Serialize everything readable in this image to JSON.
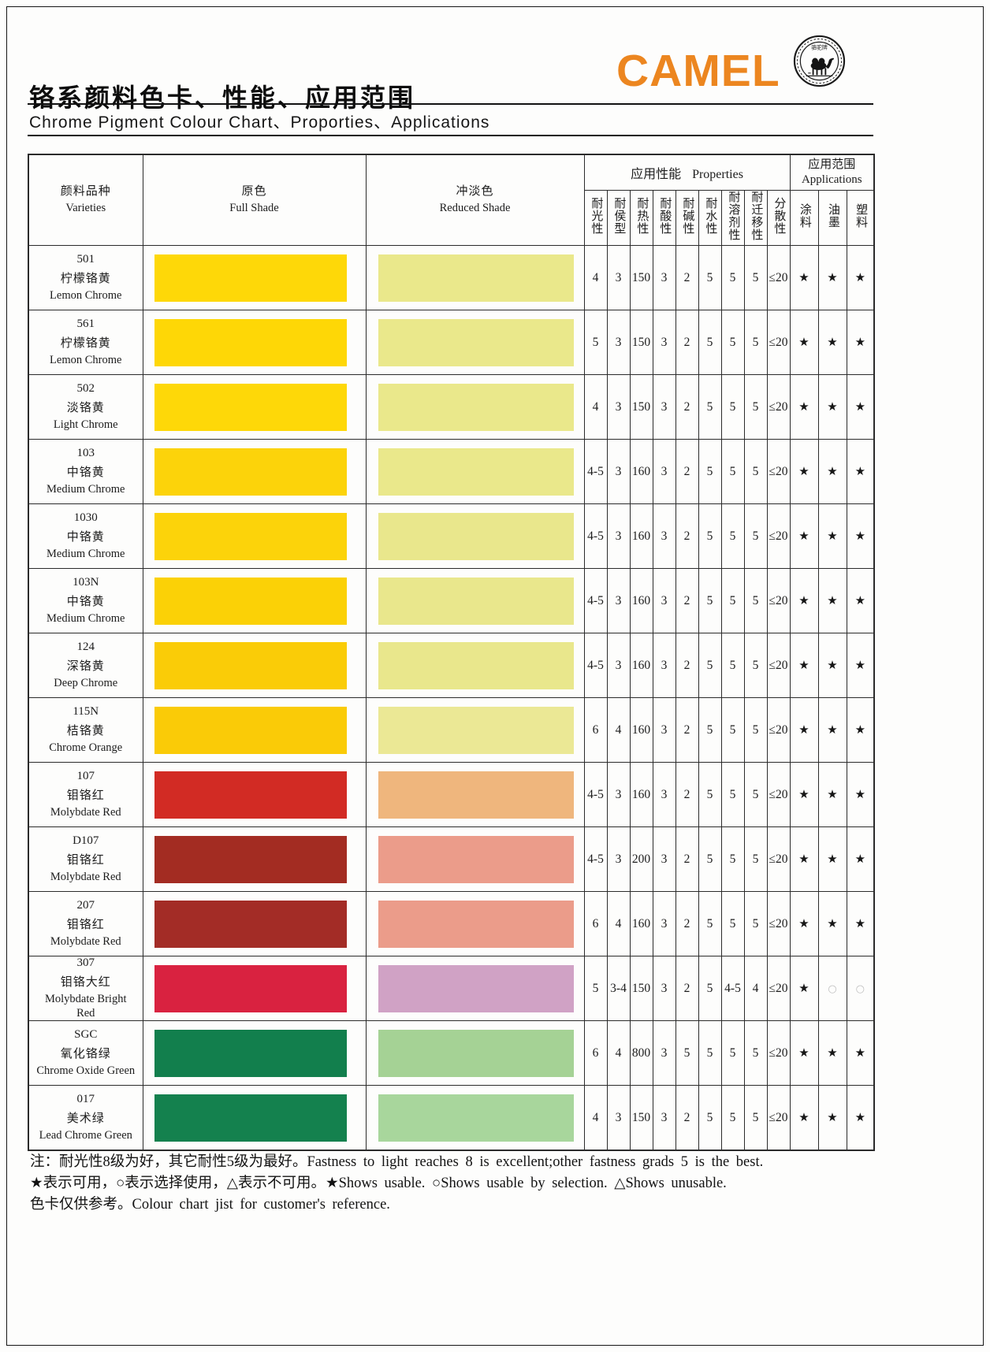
{
  "header": {
    "title_zh": "铬系颜料色卡、性能、应用范围",
    "title_en": "Chrome Pigment Colour Chart、Proporties、Applications",
    "brand": "CAMEL",
    "brand_color": "#EC8620",
    "logo_text": "骆驼牌"
  },
  "table": {
    "header": {
      "varieties_zh": "颜料品种",
      "varieties_en": "Varieties",
      "full_shade_zh": "原色",
      "full_shade_en": "Full Shade",
      "reduced_shade_zh": "冲淡色",
      "reduced_shade_en": "Reduced Shade",
      "properties_group_zh": "应用性能",
      "properties_group_en": "Properties",
      "applications_group_zh": "应用范围",
      "applications_group_en": "Applications",
      "property_cols": [
        "耐光性",
        "耐侯型",
        "耐热性",
        "耐酸性",
        "耐碱性",
        "耐水性",
        "耐溶剂性",
        "耐迁移性",
        "分散性"
      ],
      "application_cols": [
        "涂料",
        "油墨",
        "塑料"
      ]
    },
    "rows": [
      {
        "code": "501",
        "name_zh": "柠檬铬黄",
        "name_en": "Lemon Chrome",
        "full_color": "#FED808",
        "reduced_color": "#EAE88B",
        "props": [
          "4",
          "3",
          "150",
          "3",
          "2",
          "5",
          "5",
          "5",
          "≤20"
        ],
        "apps": [
          "★",
          "★",
          "★"
        ]
      },
      {
        "code": "561",
        "name_zh": "柠檬铬黄",
        "name_en": "Lemon Chrome",
        "full_color": "#FED706",
        "reduced_color": "#EAE88B",
        "props": [
          "5",
          "3",
          "150",
          "3",
          "2",
          "5",
          "5",
          "5",
          "≤20"
        ],
        "apps": [
          "★",
          "★",
          "★"
        ]
      },
      {
        "code": "502",
        "name_zh": "淡铬黄",
        "name_en": "Light Chrome",
        "full_color": "#FED808",
        "reduced_color": "#EAE88B",
        "props": [
          "4",
          "3",
          "150",
          "3",
          "2",
          "5",
          "5",
          "5",
          "≤20"
        ],
        "apps": [
          "★",
          "★",
          "★"
        ]
      },
      {
        "code": "103",
        "name_zh": "中铬黄",
        "name_en": "Medium Chrome",
        "full_color": "#FCD30A",
        "reduced_color": "#EAE88B",
        "props": [
          "4-5",
          "3",
          "160",
          "3",
          "2",
          "5",
          "5",
          "5",
          "≤20"
        ],
        "apps": [
          "★",
          "★",
          "★"
        ]
      },
      {
        "code": "1030",
        "name_zh": "中铬黄",
        "name_en": "Medium Chrome",
        "full_color": "#FCD30A",
        "reduced_color": "#E9E78C",
        "props": [
          "4-5",
          "3",
          "160",
          "3",
          "2",
          "5",
          "5",
          "5",
          "≤20"
        ],
        "apps": [
          "★",
          "★",
          "★"
        ]
      },
      {
        "code": "103N",
        "name_zh": "中铬黄",
        "name_en": "Medium Chrome",
        "full_color": "#FBD106",
        "reduced_color": "#E9E78C",
        "props": [
          "4-5",
          "3",
          "160",
          "3",
          "2",
          "5",
          "5",
          "5",
          "≤20"
        ],
        "apps": [
          "★",
          "★",
          "★"
        ]
      },
      {
        "code": "124",
        "name_zh": "深铬黄",
        "name_en": "Deep Chrome",
        "full_color": "#FACC07",
        "reduced_color": "#E9E78C",
        "props": [
          "4-5",
          "3",
          "160",
          "3",
          "2",
          "5",
          "5",
          "5",
          "≤20"
        ],
        "apps": [
          "★",
          "★",
          "★"
        ]
      },
      {
        "code": "115N",
        "name_zh": "桔铬黄",
        "name_en": "Chrome Orange",
        "full_color": "#FACB07",
        "reduced_color": "#EBE895",
        "props": [
          "6",
          "4",
          "160",
          "3",
          "2",
          "5",
          "5",
          "5",
          "≤20"
        ],
        "apps": [
          "★",
          "★",
          "★"
        ]
      },
      {
        "code": "107",
        "name_zh": "钼铬红",
        "name_en": "Molybdate Red",
        "full_color": "#D22B24",
        "reduced_color": "#EFB67D",
        "props": [
          "4-5",
          "3",
          "160",
          "3",
          "2",
          "5",
          "5",
          "5",
          "≤20"
        ],
        "apps": [
          "★",
          "★",
          "★"
        ]
      },
      {
        "code": "D107",
        "name_zh": "钼铬红",
        "name_en": "Molybdate Red",
        "full_color": "#A32C22",
        "reduced_color": "#EB9C8A",
        "props": [
          "4-5",
          "3",
          "200",
          "3",
          "2",
          "5",
          "5",
          "5",
          "≤20"
        ],
        "apps": [
          "★",
          "★",
          "★"
        ]
      },
      {
        "code": "207",
        "name_zh": "钼铬红",
        "name_en": "Molybdate Red",
        "full_color": "#A32C26",
        "reduced_color": "#EB9C8A",
        "props": [
          "6",
          "4",
          "160",
          "3",
          "2",
          "5",
          "5",
          "5",
          "≤20"
        ],
        "apps": [
          "★",
          "★",
          "★"
        ]
      },
      {
        "code": "307",
        "name_zh": "钼铬大红",
        "name_en": "Molybdate Bright Red",
        "full_color": "#D92240",
        "reduced_color": "#D0A2C5",
        "props": [
          "5",
          "3-4",
          "150",
          "3",
          "2",
          "5",
          "4-5",
          "4",
          "≤20"
        ],
        "apps": [
          "★",
          "○",
          "○"
        ]
      },
      {
        "code": "SGC",
        "name_zh": "氧化铬绿",
        "name_en": "Chrome Oxide Green",
        "full_color": "#127F4D",
        "reduced_color": "#A5D295",
        "props": [
          "6",
          "4",
          "800",
          "3",
          "5",
          "5",
          "5",
          "5",
          "≤20"
        ],
        "apps": [
          "★",
          "★",
          "★"
        ]
      },
      {
        "code": "017",
        "name_zh": "美术绿",
        "name_en": "Lead Chrome Green",
        "full_color": "#14814E",
        "reduced_color": "#A8D69C",
        "props": [
          "4",
          "3",
          "150",
          "3",
          "2",
          "5",
          "5",
          "5",
          "≤20"
        ],
        "apps": [
          "★",
          "★",
          "★"
        ]
      }
    ]
  },
  "footnotes": [
    "注：耐光性8级为好，其它耐性5级为最好。Fastness to light reaches 8 is excellent;other fastness grads 5 is the best.",
    "★表示可用，○表示选择使用，△表示不可用。★Shows usable. ○Shows usable by selection. △Shows unusable.",
    "色卡仅供参考。Colour chart jist for customer's reference."
  ]
}
